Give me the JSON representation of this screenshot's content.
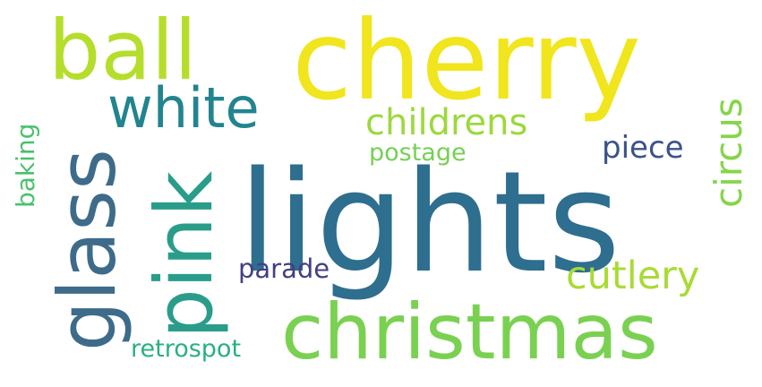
{
  "words": [
    {
      "key": "lights",
      "text": "lights",
      "color": "#2e6e8e"
    },
    {
      "key": "cherry",
      "text": "cherry",
      "color": "#f1e51d"
    },
    {
      "key": "christmas",
      "text": "christmas",
      "color": "#7ad151"
    },
    {
      "key": "ball",
      "text": "ball",
      "color": "#b5de2b"
    },
    {
      "key": "glass",
      "text": "glass",
      "color": "#3e6b8a"
    },
    {
      "key": "pink",
      "text": "pink",
      "color": "#2a9d8a"
    },
    {
      "key": "white",
      "text": "white",
      "color": "#22848e"
    },
    {
      "key": "childrens",
      "text": "childrens",
      "color": "#9bd93c"
    },
    {
      "key": "circus",
      "text": "circus",
      "color": "#86d549"
    },
    {
      "key": "cutlery",
      "text": "cutlery",
      "color": "#a8db34"
    },
    {
      "key": "piece",
      "text": "piece",
      "color": "#3b528b"
    },
    {
      "key": "parade",
      "text": "parade",
      "color": "#433e85"
    },
    {
      "key": "postage",
      "text": "postage",
      "color": "#75d054"
    },
    {
      "key": "baking",
      "text": "baking",
      "color": "#4ac16d"
    },
    {
      "key": "retrospot",
      "text": "retrospot",
      "color": "#2ab07f"
    }
  ]
}
